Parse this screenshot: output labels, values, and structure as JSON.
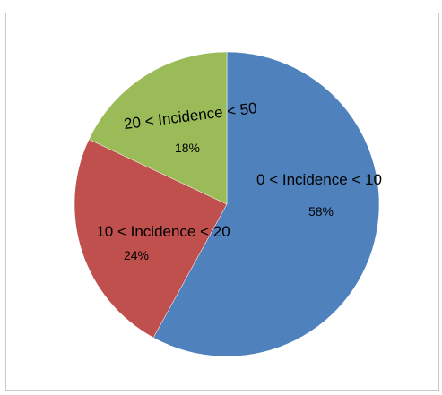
{
  "chart_data": {
    "type": "pie",
    "slices": [
      {
        "label": "0 < Incidence < 10",
        "value": 58,
        "value_label": "58%",
        "color": "#4f81bd"
      },
      {
        "label": "10 < Incidence < 20",
        "value": 24,
        "value_label": "24%",
        "color": "#c0504d"
      },
      {
        "label": "20 < Incidence < 50",
        "value": 18,
        "value_label": "18%",
        "color": "#9bbb59"
      }
    ],
    "start_angle_deg": 0,
    "direction": "clockwise",
    "legend": "none"
  }
}
